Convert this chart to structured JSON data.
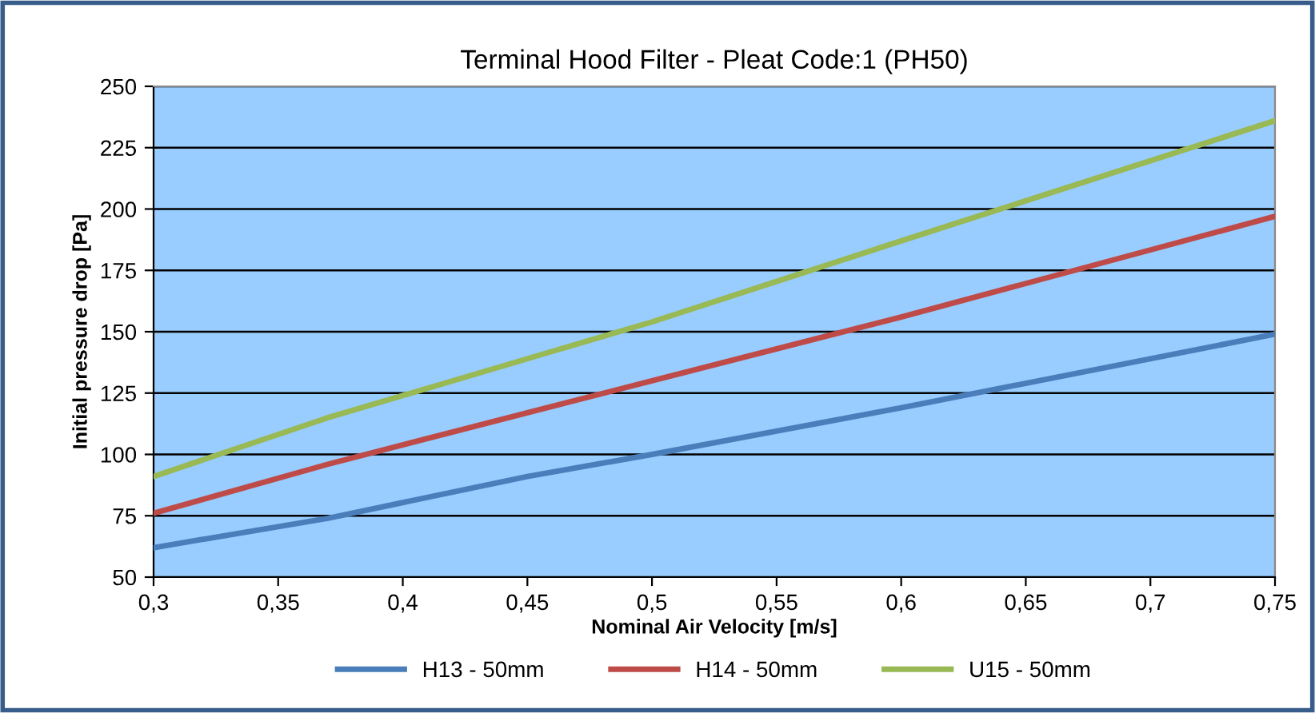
{
  "chart_data": {
    "type": "line",
    "title": "Terminal Hood Filter - Pleat Code:1 (PH50)",
    "xlabel": "Nominal Air Velocity [m/s]",
    "ylabel": "Initial pressure drop [Pa]",
    "x": [
      0.3,
      0.37,
      0.45,
      0.5,
      0.6,
      0.75
    ],
    "series": [
      {
        "name": "H13 - 50mm",
        "color": "#4a7ebb",
        "values": [
          62,
          74,
          91,
          100,
          119,
          149
        ]
      },
      {
        "name": "H14 - 50mm",
        "color": "#be4b48",
        "values": [
          76,
          96,
          117,
          130,
          156,
          197
        ]
      },
      {
        "name": "U15 - 50mm",
        "color": "#98b954",
        "values": [
          91,
          115,
          139,
          154,
          187,
          236
        ]
      }
    ],
    "xlim": [
      0.3,
      0.75
    ],
    "xticks": [
      {
        "value": 0.3,
        "label": "0,3"
      },
      {
        "value": 0.35,
        "label": "0,35"
      },
      {
        "value": 0.4,
        "label": "0,4"
      },
      {
        "value": 0.45,
        "label": "0,45"
      },
      {
        "value": 0.5,
        "label": "0,5"
      },
      {
        "value": 0.55,
        "label": "0,55"
      },
      {
        "value": 0.6,
        "label": "0,6"
      },
      {
        "value": 0.65,
        "label": "0,65"
      },
      {
        "value": 0.7,
        "label": "0,7"
      },
      {
        "value": 0.75,
        "label": "0,75"
      }
    ],
    "ylim": [
      50,
      250
    ],
    "yticks": [
      50,
      75,
      100,
      125,
      150,
      175,
      200,
      225,
      250
    ],
    "grid": "y",
    "legend": "bottom",
    "marker": "none",
    "line_style": "solid"
  }
}
